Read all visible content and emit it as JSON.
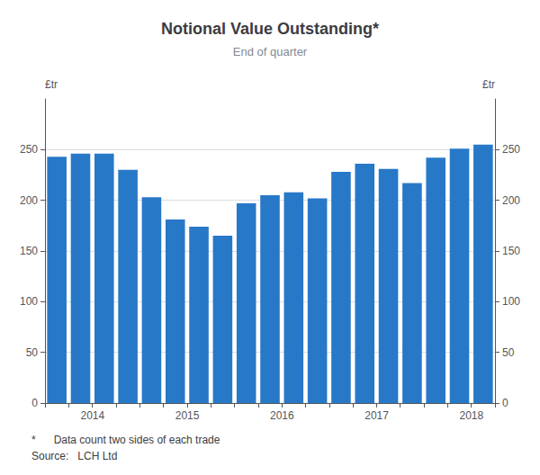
{
  "chart_data": {
    "type": "bar",
    "title": "Notional Value Outstanding*",
    "subtitle": "End of quarter",
    "y_label": "£tr",
    "y2_label": "£tr",
    "categories": [
      null,
      "2014",
      null,
      null,
      null,
      "2015",
      null,
      null,
      null,
      "2016",
      null,
      null,
      null,
      "2017",
      null,
      null,
      null,
      "2018",
      null
    ],
    "values": [
      243,
      246,
      246,
      230,
      203,
      181,
      174,
      165,
      197,
      205,
      208,
      202,
      228,
      236,
      231,
      217,
      242,
      251,
      255
    ],
    "color": "#2878C8",
    "ylim": [
      0,
      300
    ],
    "yticks": [
      0,
      50,
      100,
      150,
      200,
      250
    ],
    "y2lim": [
      0,
      300
    ],
    "y2ticks": [
      0,
      50,
      100,
      150,
      200,
      250
    ],
    "grid": true,
    "annotations": [
      "*      Data count two sides of each trade",
      "Source:   LCH Ltd"
    ]
  }
}
